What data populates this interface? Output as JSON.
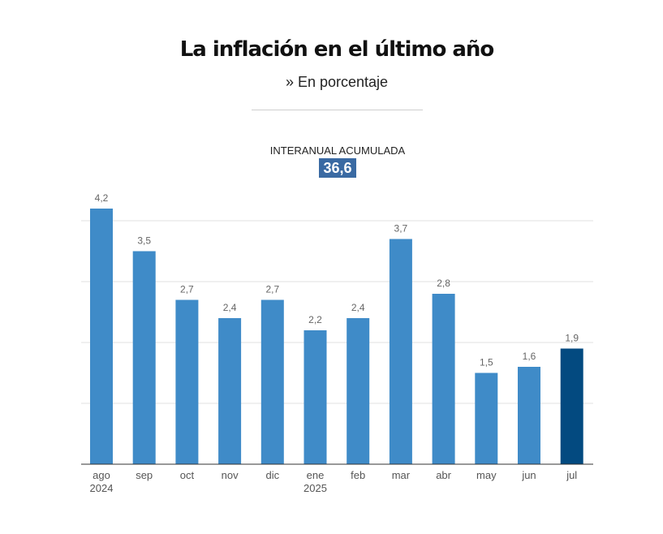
{
  "header": {
    "title": "La inflación en el último año",
    "subtitle": "» En porcentaje"
  },
  "summary": {
    "label": "INTERANUAL ACUMULADA",
    "value": "36,6",
    "box_color": "#3a6aa3"
  },
  "chart_data": {
    "type": "bar",
    "categories": [
      "ago",
      "sep",
      "oct",
      "nov",
      "dic",
      "ene",
      "feb",
      "mar",
      "abr",
      "may",
      "jun",
      "jul"
    ],
    "sublabels": [
      "2024",
      "",
      "",
      "",
      "",
      "2025",
      "",
      "",
      "",
      "",
      "",
      ""
    ],
    "values": [
      4.2,
      3.5,
      2.7,
      2.4,
      2.7,
      2.2,
      2.4,
      3.7,
      2.8,
      1.5,
      1.6,
      1.9
    ],
    "value_labels": [
      "4,2",
      "3,5",
      "2,7",
      "2,4",
      "2,7",
      "2,2",
      "2,4",
      "3,7",
      "2,8",
      "1,5",
      "1,6",
      "1,9"
    ],
    "ylim": [
      0,
      4
    ],
    "grid": true,
    "colors": {
      "bar": "#3f8bc8",
      "highlight": "#034a80"
    },
    "highlight_index": 11
  }
}
